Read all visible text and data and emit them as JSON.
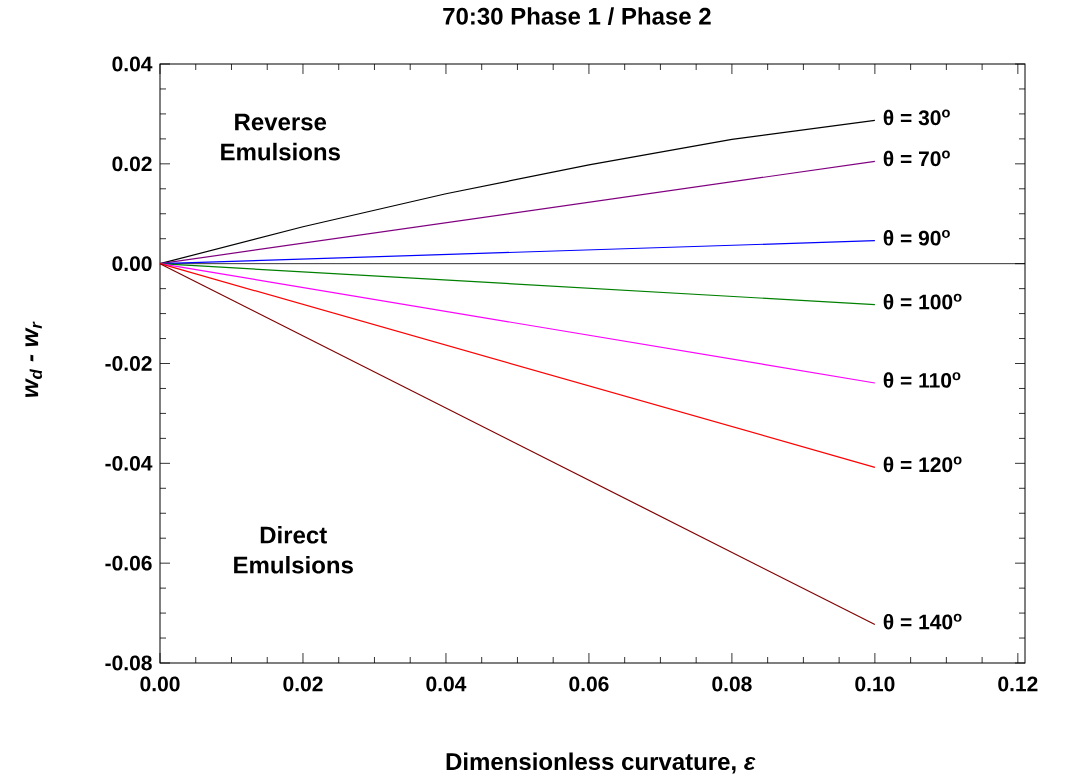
{
  "chart_data": {
    "type": "line",
    "title": "70:30  Phase 1 / Phase 2",
    "xlabel": "Dimensionless curvature,  *ε*",
    "ylabel": "w$_{d}$ - w$_{r}$",
    "annotations": [
      "Reverse Emulsions",
      "Direct Emulsions"
    ],
    "xlim": [
      0,
      0.121
    ],
    "ylim": [
      -0.08,
      0.04
    ],
    "xticks": [
      {
        "value": 0,
        "label": "0.00"
      },
      {
        "value": 0.005,
        "label": null
      },
      {
        "value": 0.01,
        "label": null
      },
      {
        "value": 0.015,
        "label": null
      },
      0.02,
      {
        "value": 0.025,
        "label": null
      },
      {
        "value": 0.03,
        "label": null
      },
      {
        "value": 0.035,
        "label": null
      },
      0.04,
      {
        "value": 0.045,
        "label": null
      },
      {
        "value": 0.05,
        "label": null
      },
      {
        "value": 0.055,
        "label": null
      },
      0.06,
      {
        "value": 0.065,
        "label": null
      },
      {
        "value": 0.07,
        "label": null
      },
      {
        "value": 0.075,
        "label": null
      },
      0.08,
      {
        "value": 0.085,
        "label": null
      },
      {
        "value": 0.09,
        "label": null
      },
      {
        "value": 0.095,
        "label": null
      },
      {
        "value": 0.1,
        "label": "0.10"
      },
      {
        "value": 0.105,
        "label": null
      },
      {
        "value": 0.11,
        "label": null
      },
      {
        "value": 0.115,
        "label": null
      },
      0.12
    ],
    "yticks": [
      -0.08,
      {
        "value": -0.075,
        "label": null
      },
      {
        "value": -0.07,
        "label": null
      },
      {
        "value": -0.065,
        "label": null
      },
      -0.06,
      {
        "value": -0.055,
        "label": null
      },
      {
        "value": -0.05,
        "label": null
      },
      {
        "value": -0.045,
        "label": null
      },
      -0.04,
      {
        "value": -0.035,
        "label": null
      },
      {
        "value": -0.03,
        "label": null
      },
      {
        "value": -0.025,
        "label": null
      },
      -0.02,
      {
        "value": -0.015,
        "label": null
      },
      {
        "value": -0.01,
        "label": null
      },
      {
        "value": -0.005,
        "label": null
      },
      {
        "value": 0,
        "label": "0.00"
      },
      {
        "value": 0.005,
        "label": null
      },
      {
        "value": 0.01,
        "label": null
      },
      {
        "value": 0.015,
        "label": null
      },
      0.02,
      {
        "value": 0.025,
        "label": null
      },
      {
        "value": 0.03,
        "label": null
      },
      {
        "value": 0.035,
        "label": null
      },
      0.04
    ],
    "ref_lines": [
      {
        "axis": "y",
        "value": 0,
        "color": "#000000"
      }
    ],
    "series": [
      {
        "name": "θ = 30$^{o}$",
        "color": "#000000",
        "x": [
          0,
          0.02,
          0.04,
          0.06,
          0.08,
          0.1
        ],
        "values": [
          0,
          0.0074,
          0.014,
          0.0198,
          0.0249,
          0.0287
        ]
      },
      {
        "name": "θ = 70$^{o}$",
        "color": "#800080",
        "x": [
          0,
          0.1
        ],
        "values": [
          0,
          0.0205
        ]
      },
      {
        "name": "θ = 90$^{o}$",
        "color": "#0000ff",
        "x": [
          0,
          0.1
        ],
        "values": [
          0,
          0.0046
        ]
      },
      {
        "name": "θ = 100$^{o}$",
        "color": "#008000",
        "x": [
          0,
          0.1
        ],
        "values": [
          0,
          -0.0082
        ]
      },
      {
        "name": "θ = 110$^{o}$",
        "color": "#ff00ff",
        "x": [
          0,
          0.1
        ],
        "values": [
          0,
          -0.0239
        ]
      },
      {
        "name": "θ = 120$^{o}$",
        "color": "#ff0000",
        "x": [
          0,
          0.1
        ],
        "values": [
          0,
          -0.0408
        ]
      },
      {
        "name": "θ = 140$^{o}$",
        "color": "#800000",
        "x": [
          0,
          0.1
        ],
        "values": [
          0,
          -0.0723
        ]
      }
    ]
  }
}
